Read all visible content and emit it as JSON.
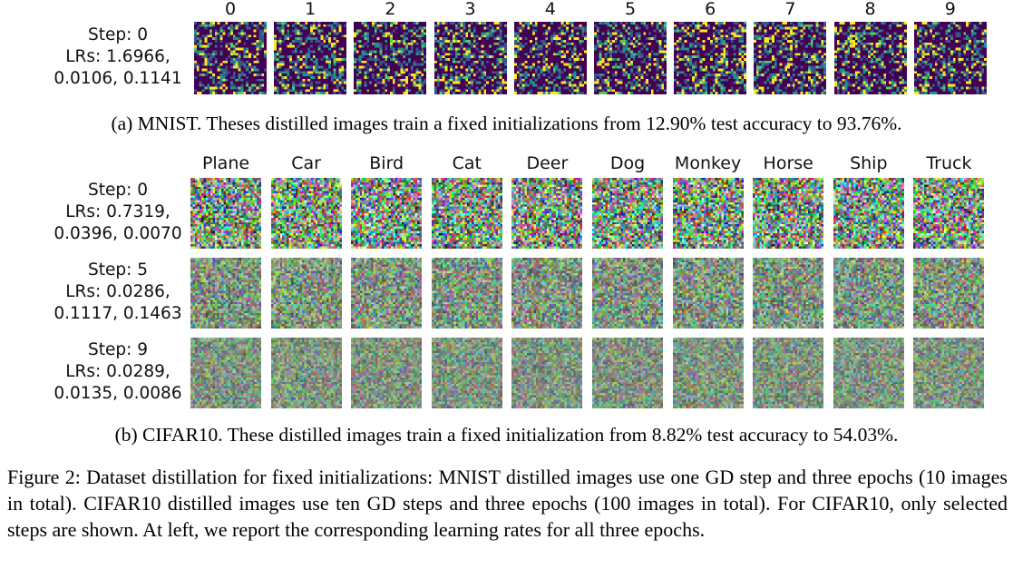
{
  "mnist": {
    "columns": [
      "0",
      "1",
      "2",
      "3",
      "4",
      "5",
      "6",
      "7",
      "8",
      "9"
    ],
    "rows": [
      {
        "step": "Step: 0",
        "lrs_line1": "LRs: 1.6966,",
        "lrs_line2": "0.0106, 0.1141"
      }
    ],
    "caption": "(a) MNIST. Theses distilled images train a fixed initializations from 12.90% test accuracy to 93.76%."
  },
  "cifar": {
    "columns": [
      "Plane",
      "Car",
      "Bird",
      "Cat",
      "Deer",
      "Dog",
      "Monkey",
      "Horse",
      "Ship",
      "Truck"
    ],
    "rows": [
      {
        "step": "Step: 0",
        "lrs_line1": "LRs: 0.7319,",
        "lrs_line2": "0.0396, 0.0070"
      },
      {
        "step": "Step: 5",
        "lrs_line1": "LRs: 0.0286,",
        "lrs_line2": "0.1117, 0.1463"
      },
      {
        "step": "Step: 9",
        "lrs_line1": "LRs: 0.0289,",
        "lrs_line2": "0.0135, 0.0086"
      }
    ],
    "caption": "(b) CIFAR10. These distilled images train a fixed initialization from 8.82% test accuracy to 54.03%."
  },
  "figure_caption": "Figure 2: Dataset distillation for fixed initializations: MNIST distilled images use one GD step and three epochs (10 images in total). CIFAR10 distilled images use ten GD steps and three epochs (100 images in total). For CIFAR10, only selected steps are shown. At left, we report the corresponding learning rates for all three epochs.",
  "colors": {
    "viridis_low": "#440154",
    "viridis_mid": "#21918c",
    "viridis_high": "#fde725"
  }
}
